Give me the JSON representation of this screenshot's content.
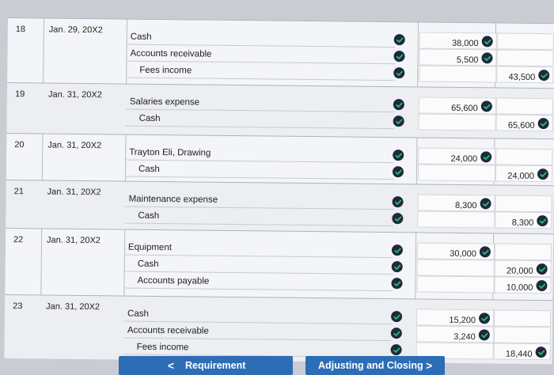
{
  "entries": [
    {
      "number": "18",
      "date": "Jan. 29, 20X2",
      "lines": [
        {
          "account": "Cash",
          "indent": false,
          "debit": "38,000",
          "credit": ""
        },
        {
          "account": "Accounts receivable",
          "indent": false,
          "debit": "5,500",
          "credit": ""
        },
        {
          "account": "Fees income",
          "indent": true,
          "debit": "",
          "credit": "43,500"
        }
      ]
    },
    {
      "number": "19",
      "date": "Jan. 31, 20X2",
      "lines": [
        {
          "account": "Salaries expense",
          "indent": false,
          "debit": "65,600",
          "credit": ""
        },
        {
          "account": "Cash",
          "indent": true,
          "debit": "",
          "credit": "65,600"
        }
      ]
    },
    {
      "number": "20",
      "date": "Jan. 31, 20X2",
      "lines": [
        {
          "account": "Trayton Eli, Drawing",
          "indent": false,
          "debit": "24,000",
          "credit": ""
        },
        {
          "account": "Cash",
          "indent": true,
          "debit": "",
          "credit": "24,000"
        }
      ]
    },
    {
      "number": "21",
      "date": "Jan. 31, 20X2",
      "lines": [
        {
          "account": "Maintenance expense",
          "indent": false,
          "debit": "8,300",
          "credit": ""
        },
        {
          "account": "Cash",
          "indent": true,
          "debit": "",
          "credit": "8,300"
        }
      ]
    },
    {
      "number": "22",
      "date": "Jan. 31, 20X2",
      "lines": [
        {
          "account": "Equipment",
          "indent": false,
          "debit": "30,000",
          "credit": ""
        },
        {
          "account": "Cash",
          "indent": true,
          "debit": "",
          "credit": "20,000"
        },
        {
          "account": "Accounts payable",
          "indent": true,
          "debit": "",
          "credit": "10,000"
        }
      ]
    },
    {
      "number": "23",
      "date": "Jan. 31, 20X2",
      "lines": [
        {
          "account": "Cash",
          "indent": false,
          "debit": "15,200",
          "credit": ""
        },
        {
          "account": "Accounts receivable",
          "indent": false,
          "debit": "3,240",
          "credit": ""
        },
        {
          "account": "Fees income",
          "indent": true,
          "debit": "",
          "credit": "18,440"
        }
      ]
    }
  ],
  "nav": {
    "prev_label": "Requirement",
    "prev_icon": "chevron-left-icon",
    "prev_glyph": "<",
    "next_label": "Adjusting and Closing",
    "next_icon": "chevron-right-icon",
    "next_glyph": ">"
  },
  "colors": {
    "check_fill": "#22283a",
    "check_mark": "#19c37d",
    "button_blue": "#2d6db6"
  }
}
